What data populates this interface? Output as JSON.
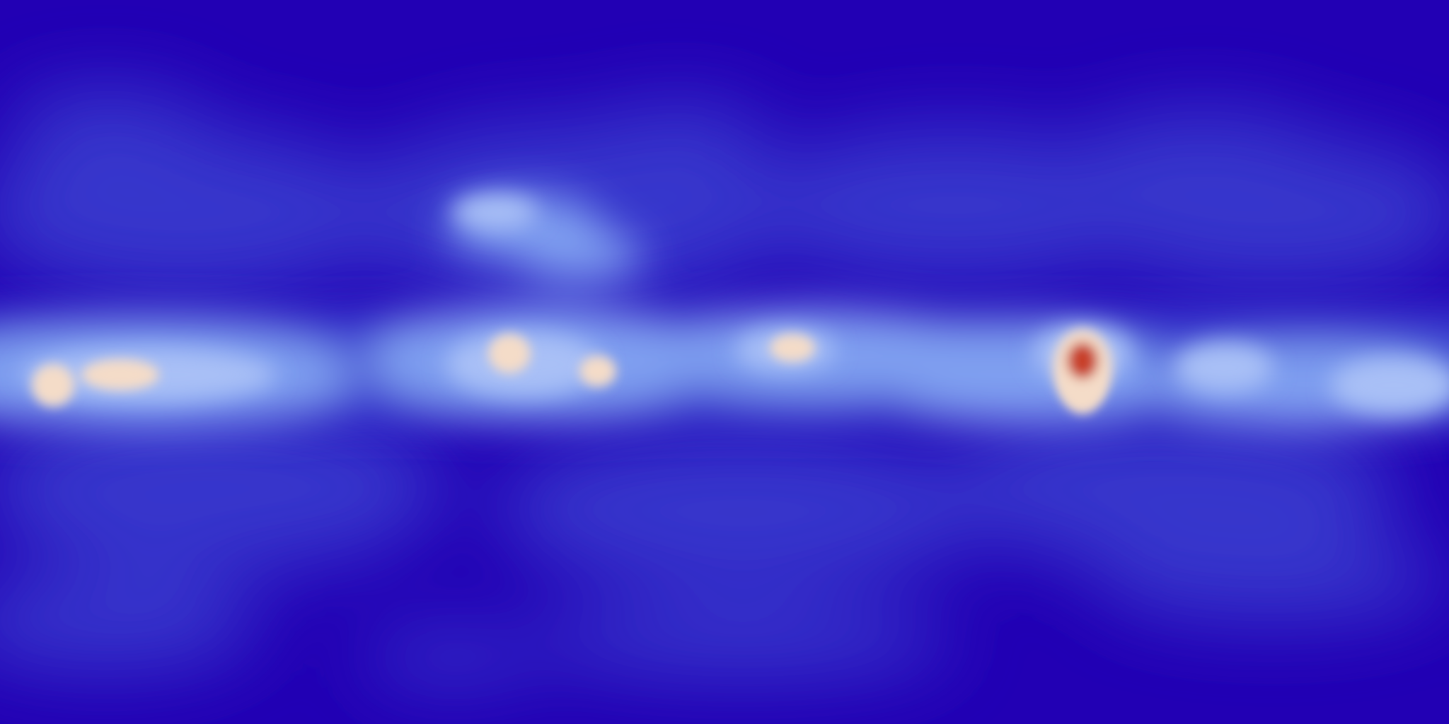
{
  "image": {
    "kind": "equirectangular-sky-intensity-map",
    "colormap": "coolwarm",
    "colors": {
      "background": "#2200b4",
      "low": "#3a3fd0",
      "mid": "#7f9ff0",
      "high": "#f4dcc8",
      "hotspot": "#c8412c"
    }
  }
}
